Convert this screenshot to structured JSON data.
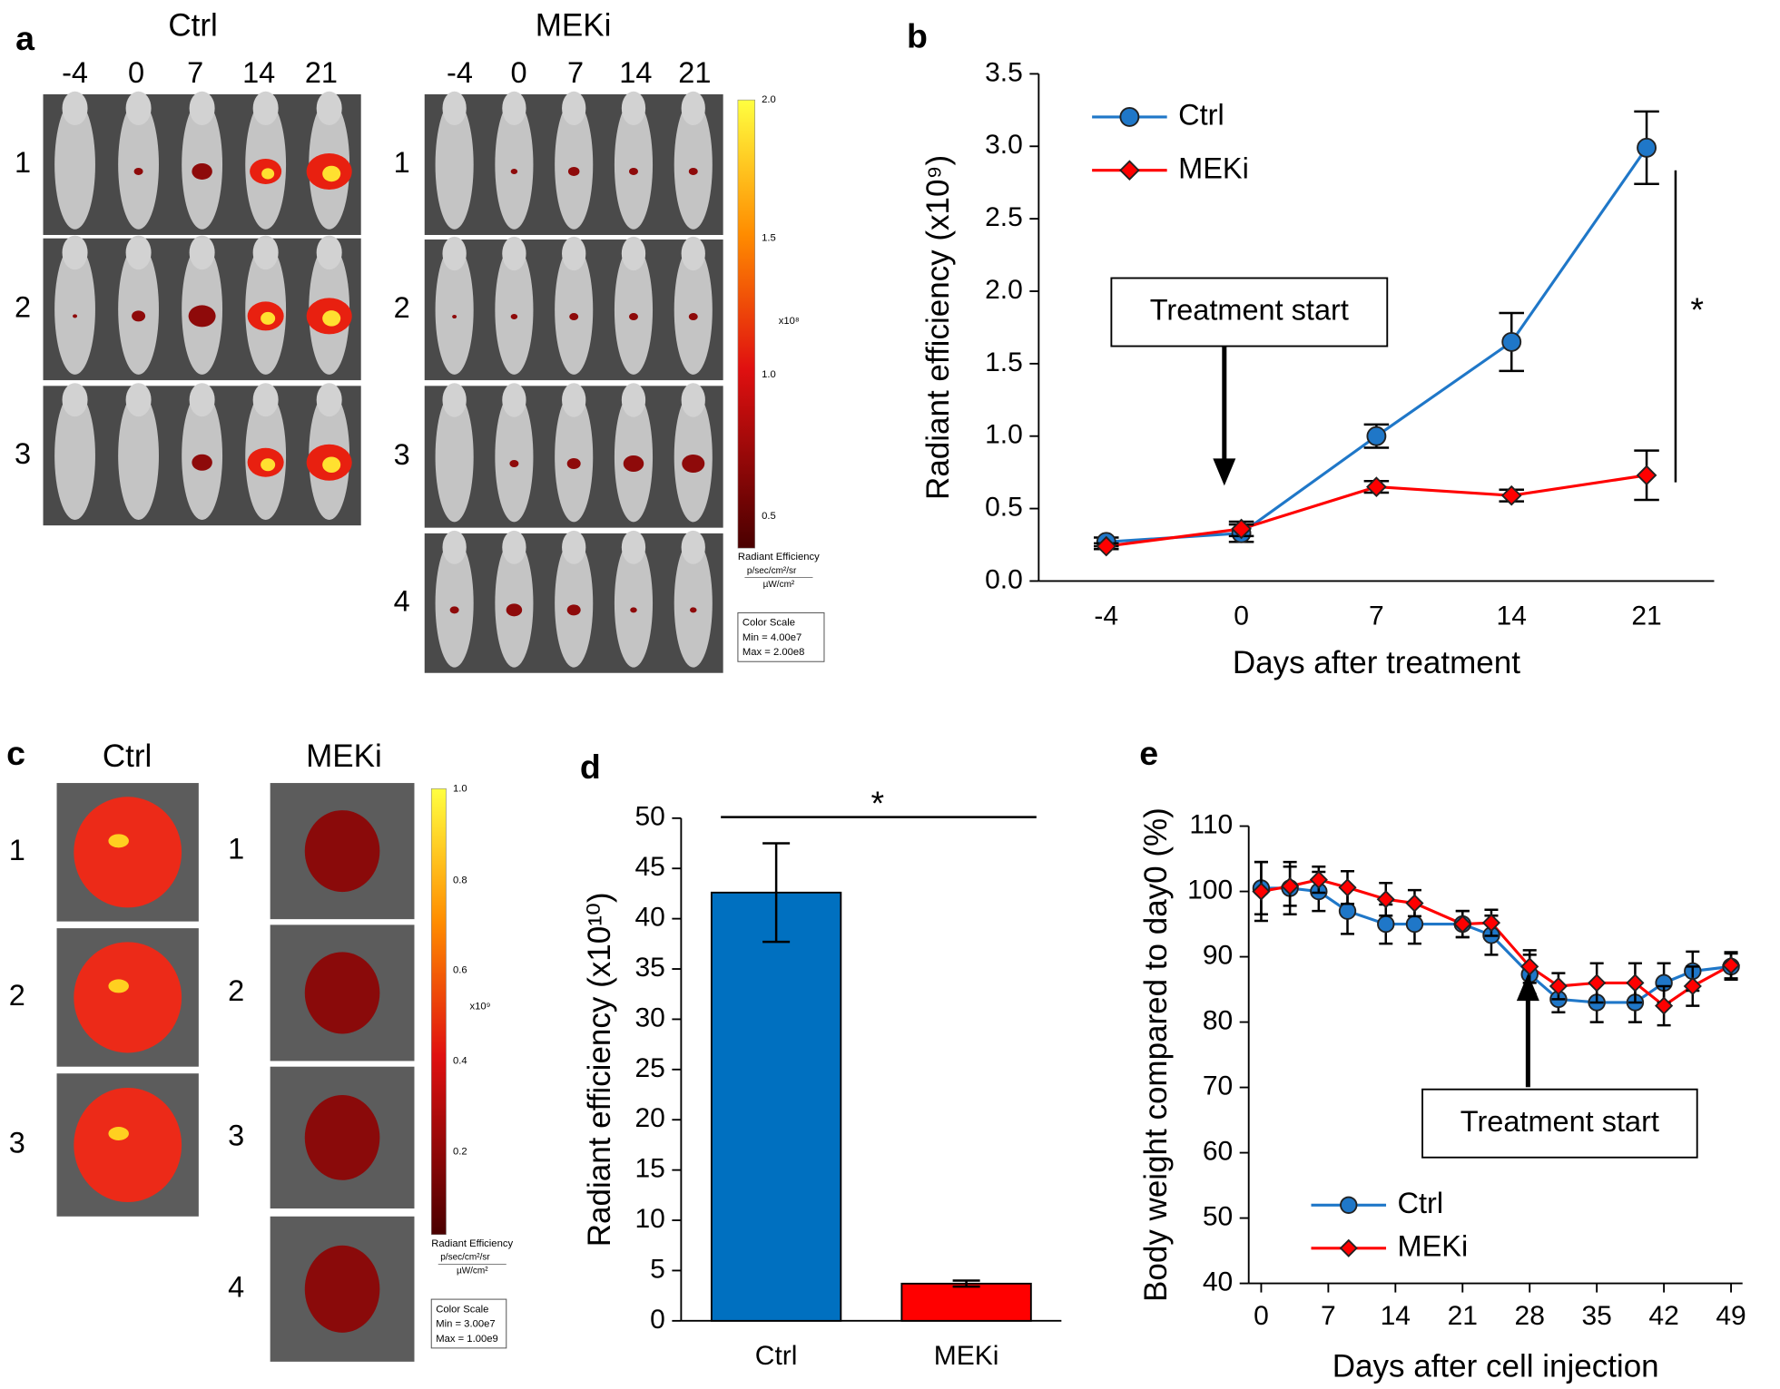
{
  "panel_a": {
    "label": "a",
    "groups": [
      {
        "title": "Ctrl",
        "days": [
          "-4",
          "0",
          "7",
          "14",
          "21"
        ],
        "rows": [
          "1",
          "2",
          "3"
        ]
      },
      {
        "title": "MEKi",
        "days": [
          "-4",
          "0",
          "7",
          "14",
          "21"
        ],
        "rows": [
          "1",
          "2",
          "3",
          "4"
        ]
      }
    ],
    "color_scale": {
      "ticks": [
        "2.0",
        "1.5",
        "1.0",
        "0.5"
      ],
      "multiplier": "x10⁸",
      "unit_title": "Radiant Efficiency",
      "unit_numerator": "p/sec/cm²/sr",
      "unit_denominator": "µW/cm²",
      "box": [
        "Color Scale",
        "Min = 4.00e7",
        "Max = 2.00e8"
      ]
    }
  },
  "panel_c": {
    "label": "c",
    "groups": [
      {
        "title": "Ctrl",
        "rows": [
          "1",
          "2",
          "3"
        ]
      },
      {
        "title": "MEKi",
        "rows": [
          "1",
          "2",
          "3",
          "4"
        ]
      }
    ],
    "color_scale": {
      "ticks": [
        "1.0",
        "0.8",
        "0.6",
        "0.4",
        "0.2"
      ],
      "multiplier": "x10⁹",
      "unit_title": "Radiant Efficiency",
      "unit_numerator": "p/sec/cm²/sr",
      "unit_denominator": "µW/cm²",
      "box": [
        "Color Scale",
        "Min = 3.00e7",
        "Max = 1.00e9"
      ]
    }
  },
  "chart_data": [
    {
      "type": "line",
      "panel_label": "b",
      "categories": [
        "-4",
        "0",
        "7",
        "14",
        "21"
      ],
      "series": [
        {
          "name": "Ctrl",
          "color": "#1f77c8",
          "marker": "circle",
          "values": [
            0.27,
            0.33,
            1.0,
            1.65,
            2.99
          ],
          "errors": [
            0.03,
            0.06,
            0.08,
            0.2,
            0.25
          ]
        },
        {
          "name": "MEKi",
          "color": "#ff0000",
          "marker": "diamond",
          "values": [
            0.24,
            0.36,
            0.65,
            0.59,
            0.73
          ],
          "errors": [
            0.02,
            0.05,
            0.04,
            0.04,
            0.17
          ]
        }
      ],
      "ylim": [
        0,
        3.5
      ],
      "yticks": [
        {
          "value": 0,
          "label": "0.0"
        },
        {
          "value": 0.5,
          "label": "0.5"
        },
        {
          "value": 1,
          "label": "1.0"
        },
        {
          "value": 1.5,
          "label": "1.5"
        },
        {
          "value": 2,
          "label": "2.0"
        },
        {
          "value": 2.5,
          "label": "2.5"
        },
        {
          "value": 3,
          "label": "3.0"
        },
        {
          "value": 3.5,
          "label": "3.5"
        }
      ],
      "y_label": "Radiant efficiency (x10⁹)",
      "x_label": "Days after treatment",
      "annotation": "Treatment start",
      "significance": "*",
      "legend": "upper-left",
      "grid": false
    },
    {
      "type": "bar",
      "panel_label": "d",
      "categories": [
        "Ctrl",
        "MEKi"
      ],
      "values": [
        42.6,
        3.7
      ],
      "errors": [
        4.9,
        0.3
      ],
      "colors": [
        "#0070c0",
        "#ff0000"
      ],
      "ylim": [
        0,
        50
      ],
      "yticks": [
        0,
        5,
        10,
        15,
        20,
        25,
        30,
        35,
        40,
        45,
        50
      ],
      "y_label": "Radiant efficiency (x10¹⁰)",
      "significance": "*",
      "grid": false
    },
    {
      "type": "line",
      "panel_label": "e",
      "x": [
        0,
        3,
        6,
        9,
        13,
        16,
        21,
        24,
        28,
        31,
        35,
        39,
        42,
        45,
        49
      ],
      "series": [
        {
          "name": "Ctrl",
          "color": "#1f77c8",
          "marker": "circle",
          "values": [
            100.5,
            100.5,
            100,
            97,
            95,
            95,
            95,
            93.3,
            87.3,
            83.5,
            83,
            83,
            86,
            87.8,
            88.5
          ],
          "errors": [
            4,
            4,
            3,
            3.5,
            3,
            3,
            2,
            3,
            3,
            2,
            3,
            3,
            3,
            3,
            2
          ]
        },
        {
          "name": "MEKi",
          "color": "#ff0000",
          "marker": "diamond",
          "values": [
            100,
            100.8,
            101.8,
            100.6,
            98.8,
            98.2,
            95,
            95.2,
            88.5,
            85.5,
            86,
            86,
            82.5,
            85.5,
            88.7
          ],
          "errors": [
            4.5,
            3,
            2,
            2.5,
            2.5,
            2,
            2,
            2,
            2.5,
            2,
            3,
            3,
            3,
            3,
            2
          ]
        }
      ],
      "xlim": [
        -1.3,
        50.2
      ],
      "xticks": [
        0,
        7,
        14,
        21,
        28,
        35,
        42,
        49
      ],
      "ylim": [
        40,
        110
      ],
      "yticks": [
        40,
        50,
        60,
        70,
        80,
        90,
        100,
        110
      ],
      "y_label": "Body weight compared to day0 (%)",
      "x_label": "Days after cell injection",
      "annotation": "Treatment start",
      "legend": "lower-left",
      "grid": false
    }
  ]
}
